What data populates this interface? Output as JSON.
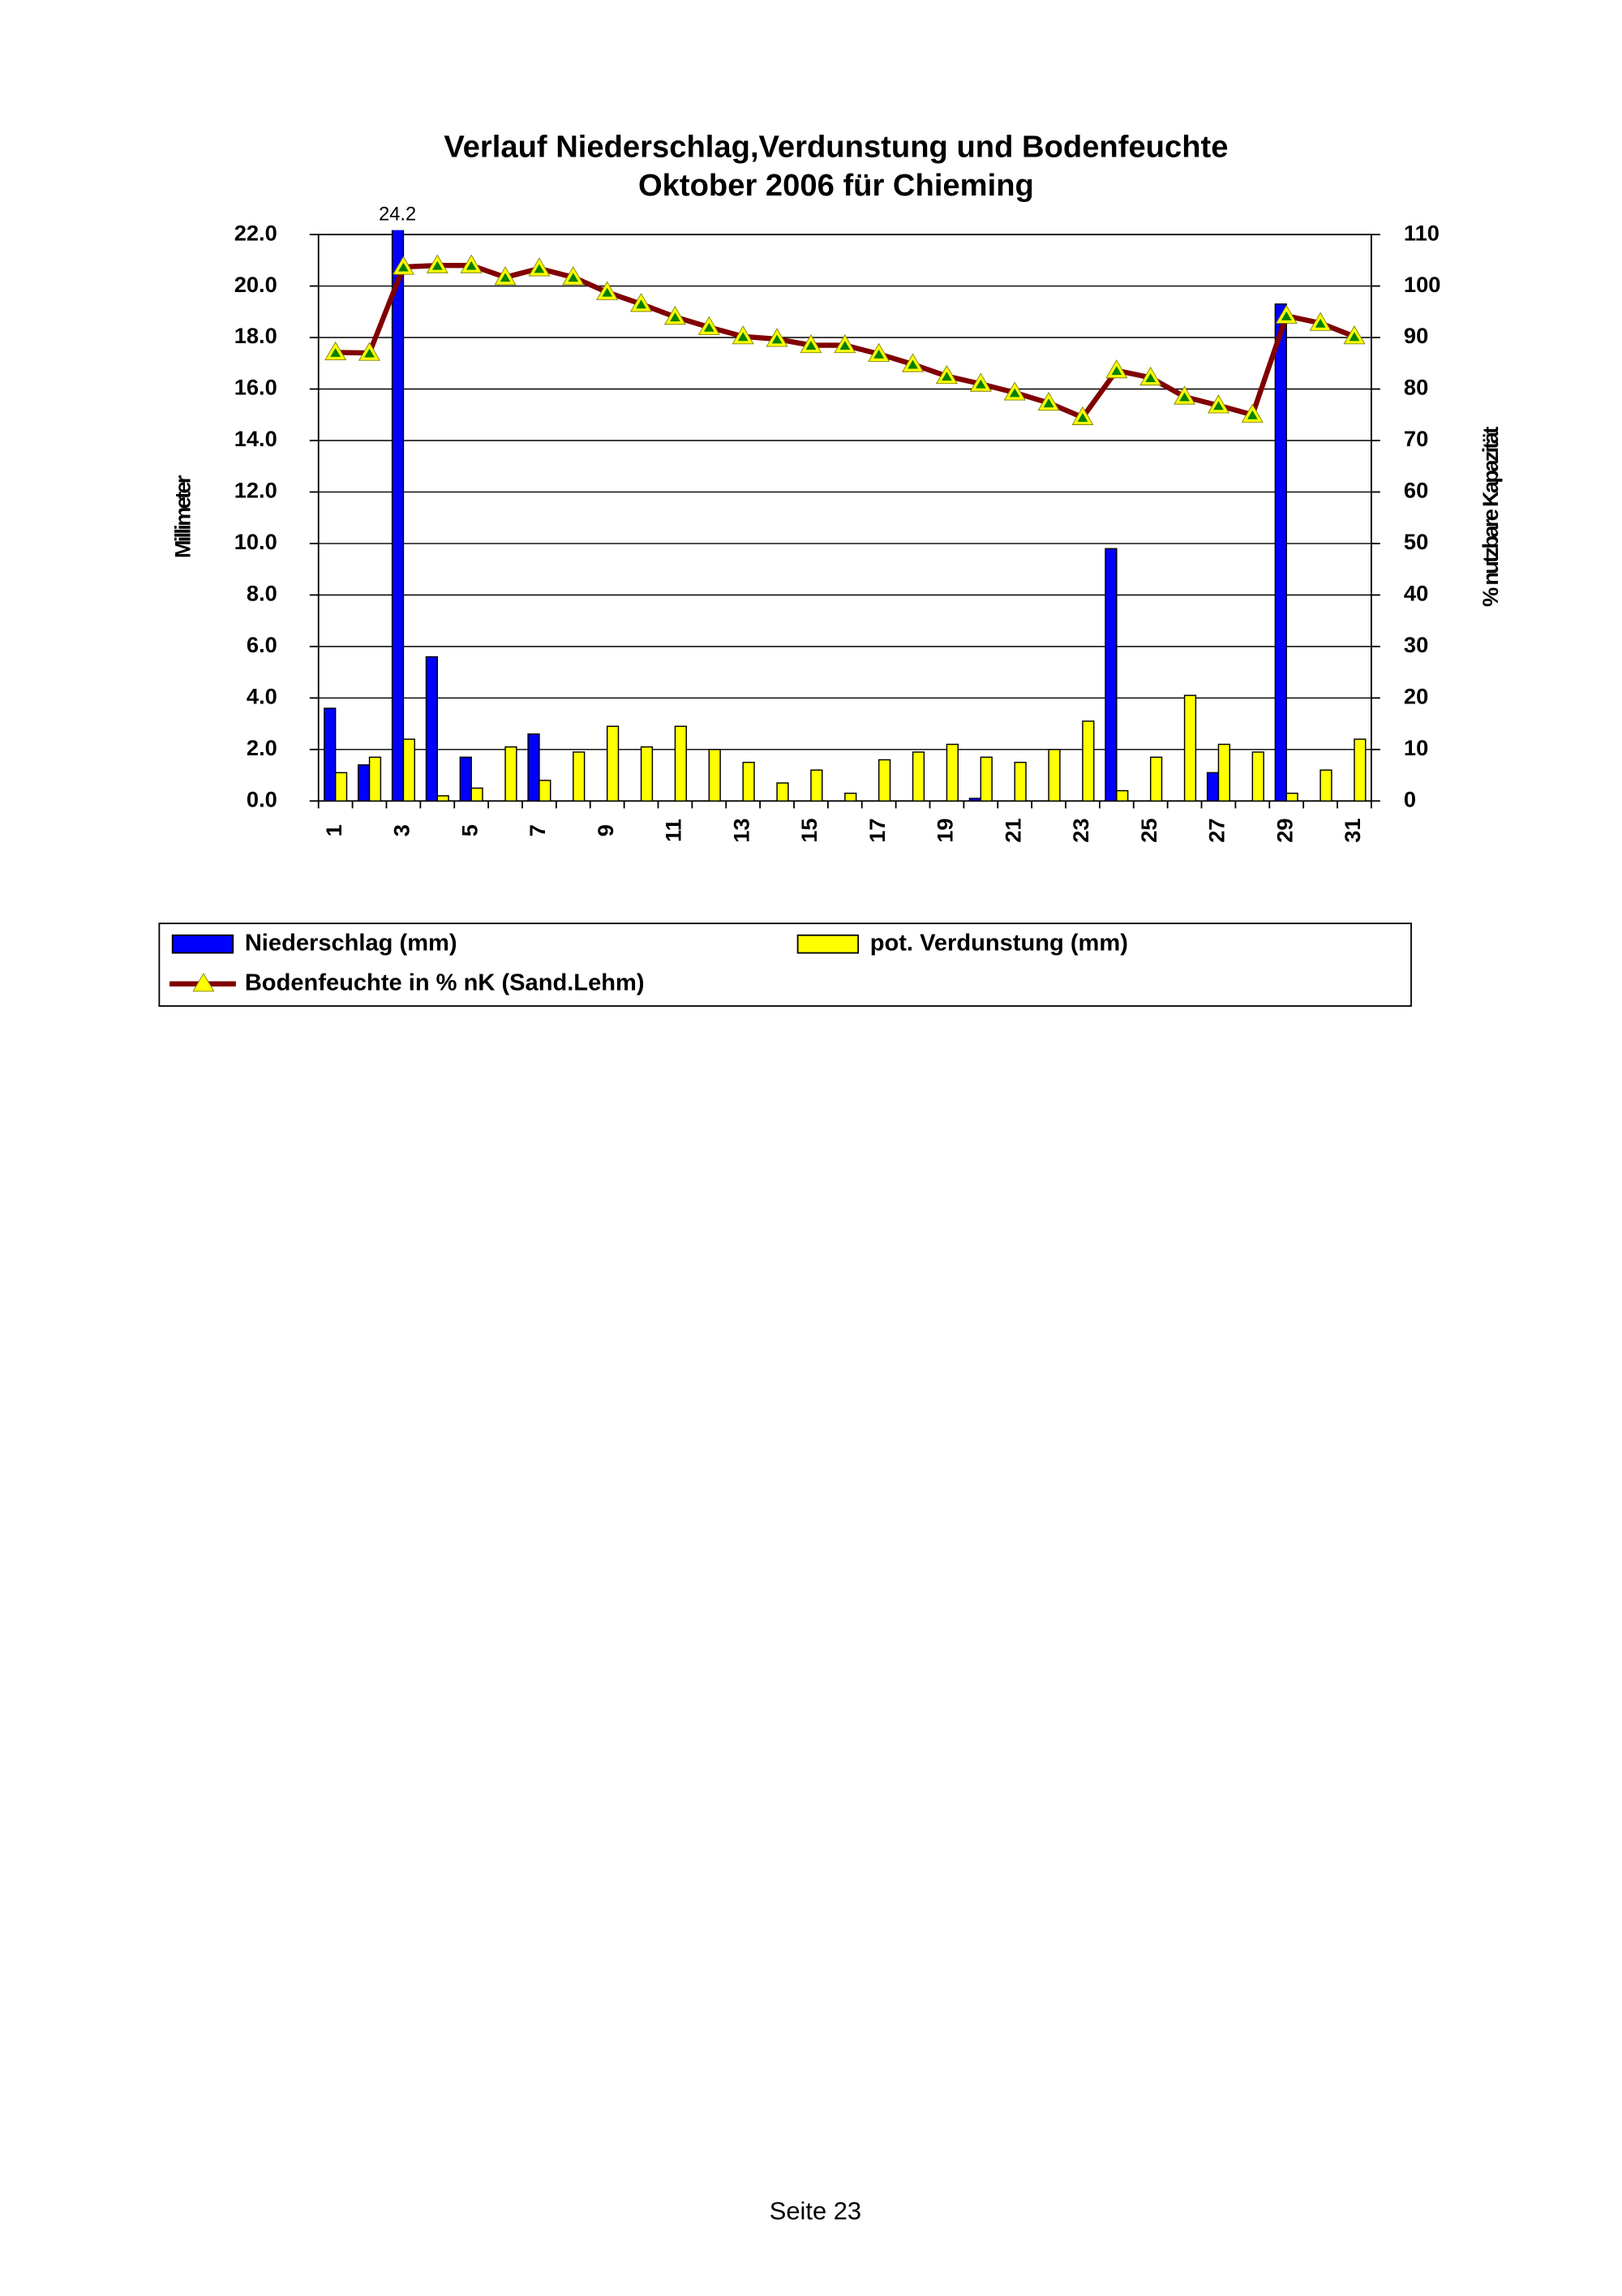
{
  "chart_data": {
    "type": "bar",
    "title": [
      "Verlauf Niederschlag,Verdunstung und Bodenfeuchte",
      "Oktober 2006 für Chieming"
    ],
    "ylabel": "Millimeter",
    "y2label": "% nutzbare Kapazität",
    "footer": "Seite 23",
    "categories": [
      "1",
      null,
      "3",
      null,
      "5",
      null,
      "7",
      null,
      "9",
      null,
      "11",
      null,
      "13",
      null,
      "15",
      null,
      "17",
      null,
      "19",
      null,
      "21",
      null,
      "23",
      null,
      "25",
      null,
      "27",
      null,
      "29",
      null,
      "31"
    ],
    "series": [
      {
        "name": "Niederschlag (mm)",
        "type": "bar",
        "color": "#0000ff",
        "values": [
          3.6,
          1.4,
          24.2,
          5.6,
          1.7,
          0,
          2.6,
          0,
          0,
          0,
          0,
          0,
          0,
          0,
          0,
          0,
          0,
          0,
          0,
          0.1,
          0,
          0,
          0,
          9.8,
          0,
          0,
          1.1,
          0,
          19.3,
          0,
          0
        ]
      },
      {
        "name": "pot. Verdunstung (mm)",
        "type": "bar",
        "color": "#ffff00",
        "values": [
          1.1,
          1.7,
          2.4,
          0.2,
          0.5,
          2.1,
          0.8,
          1.9,
          2.9,
          2.1,
          2.9,
          2.0,
          1.5,
          0.7,
          1.2,
          0.3,
          1.6,
          1.9,
          2.2,
          1.7,
          1.5,
          2.0,
          3.1,
          0.4,
          1.7,
          4.1,
          2.2,
          1.9,
          0.3,
          1.2,
          2.4
        ]
      },
      {
        "name": "Bodenfeuchte in % nK (Sand.Lehm)",
        "type": "line",
        "axis": "y2",
        "color": "#800000",
        "values": [
          87.1,
          87,
          103.7,
          104,
          104,
          101.7,
          103.4,
          101.7,
          98.8,
          96.5,
          94,
          92,
          90.2,
          89.7,
          88.5,
          88.5,
          86.8,
          84.8,
          82.5,
          81,
          79.3,
          77.3,
          74.5,
          83.6,
          82.2,
          78.5,
          76.8,
          75,
          94.2,
          92.8,
          90.2
        ]
      }
    ],
    "ylim": [
      0,
      22
    ],
    "yticks": [
      {
        "value": 0,
        "label": "0.0"
      },
      {
        "value": 2,
        "label": "2.0"
      },
      {
        "value": 4,
        "label": "4.0"
      },
      {
        "value": 6,
        "label": "6.0"
      },
      {
        "value": 8,
        "label": "8.0"
      },
      {
        "value": 10,
        "label": "10.0"
      },
      {
        "value": 12,
        "label": "12.0"
      },
      {
        "value": 14,
        "label": "14.0"
      },
      {
        "value": 16,
        "label": "16.0"
      },
      {
        "value": 18,
        "label": "18.0"
      },
      {
        "value": 20,
        "label": "20.0"
      },
      {
        "value": 22,
        "label": "22.0"
      }
    ],
    "y2lim": [
      0,
      110
    ],
    "y2ticks": [
      0,
      10,
      20,
      30,
      40,
      50,
      60,
      70,
      80,
      90,
      100,
      110
    ],
    "grid": true
  }
}
